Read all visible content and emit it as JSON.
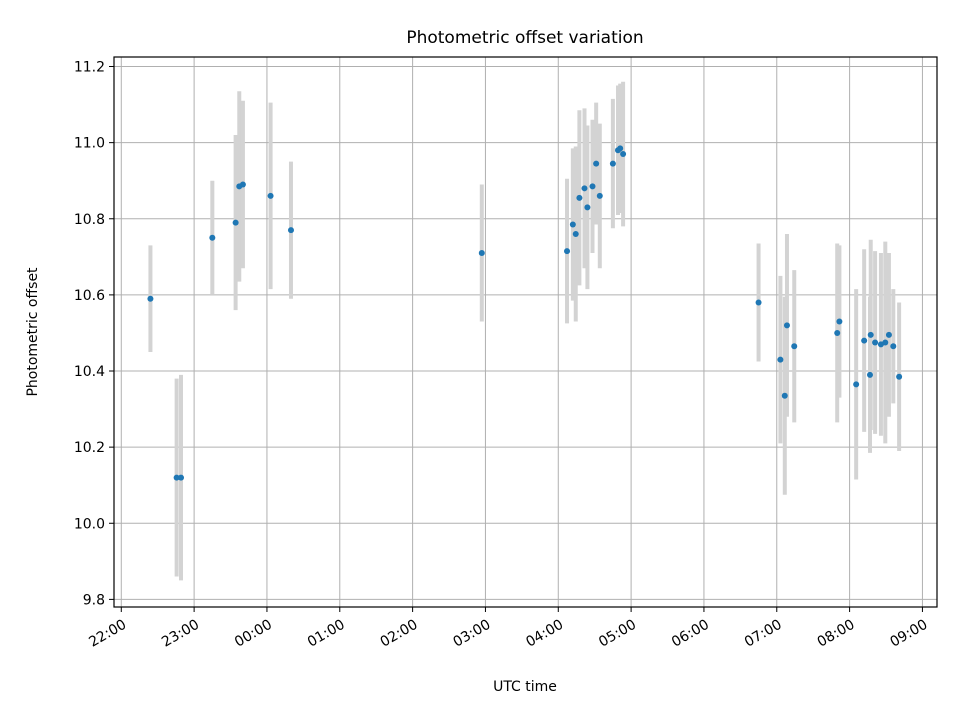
{
  "chart_data": {
    "type": "scatter",
    "title": "Photometric offset variation",
    "xlabel": "UTC time",
    "ylabel": "Photometric offset",
    "grid": true,
    "legend": "none",
    "x_unit": "UTC time, hours relative to 00:00 of the second night",
    "xlim": [
      -2.1,
      9.2
    ],
    "ylim": [
      9.78,
      11.225
    ],
    "x_ticks": [
      -2,
      -1,
      0,
      1,
      2,
      3,
      4,
      5,
      6,
      7,
      8,
      9
    ],
    "x_tick_labels": [
      "22:00",
      "23:00",
      "00:00",
      "01:00",
      "02:00",
      "03:00",
      "04:00",
      "05:00",
      "06:00",
      "07:00",
      "08:00",
      "09:00"
    ],
    "y_ticks": [
      9.8,
      10.0,
      10.2,
      10.4,
      10.6,
      10.8,
      11.0,
      11.2
    ],
    "y_tick_labels": [
      "9.8",
      "10.0",
      "10.2",
      "10.4",
      "10.6",
      "10.8",
      "11.0",
      "11.2"
    ],
    "colors": {
      "point": "#1f77b4",
      "errorbar": "#d3d3d3",
      "grid": "#b0b0b0",
      "axes": "#000000"
    },
    "points": [
      {
        "x": -1.6,
        "y": 10.59,
        "err": 0.14
      },
      {
        "x": -1.24,
        "y": 10.12,
        "err": 0.26
      },
      {
        "x": -1.18,
        "y": 10.12,
        "err": 0.27
      },
      {
        "x": -0.75,
        "y": 10.75,
        "err": 0.15
      },
      {
        "x": -0.43,
        "y": 10.79,
        "err": 0.23
      },
      {
        "x": -0.38,
        "y": 10.885,
        "err": 0.25
      },
      {
        "x": -0.33,
        "y": 10.89,
        "err": 0.22
      },
      {
        "x": 0.05,
        "y": 10.86,
        "err": 0.245
      },
      {
        "x": 0.33,
        "y": 10.77,
        "err": 0.18
      },
      {
        "x": 2.95,
        "y": 10.71,
        "err": 0.18
      },
      {
        "x": 4.12,
        "y": 10.715,
        "err": 0.19
      },
      {
        "x": 4.2,
        "y": 10.785,
        "err": 0.2
      },
      {
        "x": 4.24,
        "y": 10.76,
        "err": 0.23
      },
      {
        "x": 4.29,
        "y": 10.855,
        "err": 0.23
      },
      {
        "x": 4.36,
        "y": 10.88,
        "err": 0.21
      },
      {
        "x": 4.4,
        "y": 10.83,
        "err": 0.215
      },
      {
        "x": 4.47,
        "y": 10.885,
        "err": 0.175
      },
      {
        "x": 4.52,
        "y": 10.945,
        "err": 0.16
      },
      {
        "x": 4.57,
        "y": 10.86,
        "err": 0.19
      },
      {
        "x": 4.75,
        "y": 10.945,
        "err": 0.17
      },
      {
        "x": 4.82,
        "y": 10.98,
        "err": 0.17
      },
      {
        "x": 4.85,
        "y": 10.985,
        "err": 0.17
      },
      {
        "x": 4.89,
        "y": 10.97,
        "err": 0.19
      },
      {
        "x": 6.75,
        "y": 10.58,
        "err": 0.155
      },
      {
        "x": 7.05,
        "y": 10.43,
        "err": 0.22
      },
      {
        "x": 7.11,
        "y": 10.335,
        "err": 0.26
      },
      {
        "x": 7.14,
        "y": 10.52,
        "err": 0.24
      },
      {
        "x": 7.24,
        "y": 10.465,
        "err": 0.2
      },
      {
        "x": 7.83,
        "y": 10.5,
        "err": 0.235
      },
      {
        "x": 7.86,
        "y": 10.53,
        "err": 0.2
      },
      {
        "x": 8.09,
        "y": 10.365,
        "err": 0.25
      },
      {
        "x": 8.2,
        "y": 10.48,
        "err": 0.24
      },
      {
        "x": 8.28,
        "y": 10.39,
        "err": 0.205
      },
      {
        "x": 8.29,
        "y": 10.495,
        "err": 0.25
      },
      {
        "x": 8.35,
        "y": 10.475,
        "err": 0.24
      },
      {
        "x": 8.43,
        "y": 10.47,
        "err": 0.24
      },
      {
        "x": 8.49,
        "y": 10.475,
        "err": 0.265
      },
      {
        "x": 8.54,
        "y": 10.495,
        "err": 0.215
      },
      {
        "x": 8.6,
        "y": 10.465,
        "err": 0.15
      },
      {
        "x": 8.68,
        "y": 10.385,
        "err": 0.195
      }
    ]
  }
}
